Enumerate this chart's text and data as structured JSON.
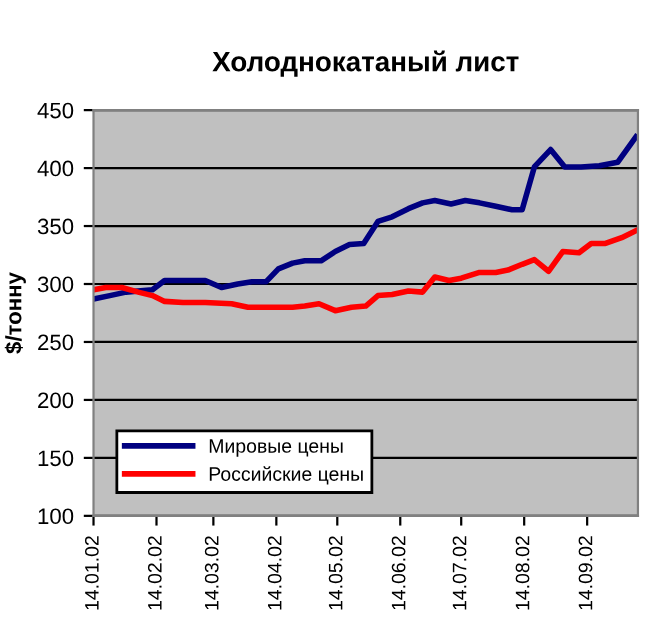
{
  "chart_data": {
    "type": "line",
    "title": "Холоднокатаный лист",
    "ylabel": "$/тонну",
    "series": [
      {
        "name": "Мировые цены",
        "color": "#000080",
        "x": [
          "2002-01-14",
          "2002-01-22",
          "2002-01-30",
          "2002-02-12",
          "2002-02-18",
          "2002-03-10",
          "2002-03-18",
          "2002-03-26",
          "2002-04-02",
          "2002-04-09",
          "2002-04-15",
          "2002-04-22",
          "2002-04-28",
          "2002-05-06",
          "2002-05-13",
          "2002-05-20",
          "2002-05-27",
          "2002-06-03",
          "2002-06-10",
          "2002-06-18",
          "2002-06-25",
          "2002-07-01",
          "2002-07-09",
          "2002-07-16",
          "2002-07-23",
          "2002-07-31",
          "2002-08-08",
          "2002-08-13",
          "2002-08-19",
          "2002-08-27",
          "2002-09-03",
          "2002-09-11",
          "2002-09-20",
          "2002-09-29",
          "2002-10-08"
        ],
        "values": [
          287,
          290,
          293,
          295,
          303,
          303,
          297,
          300,
          302,
          302,
          313,
          318,
          320,
          320,
          328,
          334,
          335,
          354,
          358,
          365,
          370,
          372,
          369,
          372,
          370,
          367,
          364,
          364,
          401,
          416,
          401,
          401,
          402,
          405,
          427
        ]
      },
      {
        "name": "Российские цены",
        "color": "#ff0000",
        "x": [
          "2002-01-14",
          "2002-01-20",
          "2002-01-28",
          "2002-02-05",
          "2002-02-12",
          "2002-02-18",
          "2002-02-27",
          "2002-03-10",
          "2002-03-23",
          "2002-03-31",
          "2002-04-09",
          "2002-04-22",
          "2002-04-28",
          "2002-05-05",
          "2002-05-13",
          "2002-05-21",
          "2002-05-28",
          "2002-06-03",
          "2002-06-10",
          "2002-06-18",
          "2002-06-25",
          "2002-07-01",
          "2002-07-08",
          "2002-07-14",
          "2002-07-23",
          "2002-07-31",
          "2002-08-06",
          "2002-08-13",
          "2002-08-19",
          "2002-08-26",
          "2002-09-02",
          "2002-09-10",
          "2002-09-16",
          "2002-09-23",
          "2002-10-01",
          "2002-10-08"
        ],
        "values": [
          295,
          297,
          297,
          293,
          290,
          285,
          284,
          284,
          283,
          280,
          280,
          280,
          281,
          283,
          277,
          280,
          281,
          290,
          291,
          294,
          293,
          306,
          303,
          305,
          310,
          310,
          312,
          317,
          321,
          311,
          328,
          327,
          335,
          335,
          340,
          346
        ]
      }
    ],
    "xlim": [
      "2002-01-14",
      "2002-10-09"
    ],
    "xticks": [
      {
        "value": "2002-01-14",
        "label": "14.01.02"
      },
      {
        "value": "2002-02-14",
        "label": "14.02.02"
      },
      {
        "value": "2002-03-14",
        "label": "14.03.02"
      },
      {
        "value": "2002-04-14",
        "label": "14.04.02"
      },
      {
        "value": "2002-05-14",
        "label": "14.05.02"
      },
      {
        "value": "2002-06-14",
        "label": "14.06.02"
      },
      {
        "value": "2002-07-14",
        "label": "14.07.02"
      },
      {
        "value": "2002-08-14",
        "label": "14.08.02"
      },
      {
        "value": "2002-09-14",
        "label": "14.09.02"
      }
    ],
    "ylim": [
      100,
      450
    ],
    "yticks": [
      100,
      150,
      200,
      250,
      300,
      350,
      400,
      450
    ],
    "grid": "y",
    "legend": "bottom left",
    "marker": "none",
    "line_style": "solid"
  }
}
